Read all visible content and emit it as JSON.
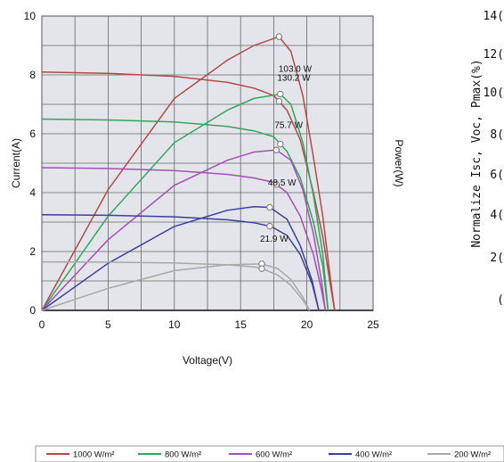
{
  "chart_data": [
    {
      "type": "line",
      "title": "",
      "xlabel": "Voltage(V)",
      "ylabel": "Current(A)",
      "y2label": "Power(W)",
      "xlim": [
        0,
        25
      ],
      "ylim": [
        0,
        10
      ],
      "xticks": [
        "0",
        "5",
        "10",
        "15",
        "20",
        "25"
      ],
      "yticks": [
        "0",
        "2",
        "4",
        "6",
        "8",
        "10"
      ],
      "grid": true,
      "colors": {
        "1000": "#b34a4a",
        "800": "#2ea85a",
        "600": "#a54fb8",
        "400": "#3b3fa0",
        "200": "#a8a8a8"
      },
      "series": [
        {
          "name": "1000 W/m²",
          "iv": [
            [
              0,
              8.1
            ],
            [
              5,
              8.05
            ],
            [
              10,
              7.95
            ],
            [
              14,
              7.75
            ],
            [
              16,
              7.55
            ],
            [
              17.5,
              7.3
            ],
            [
              18.5,
              6.8
            ],
            [
              19.5,
              5.8
            ],
            [
              20.5,
              4.0
            ],
            [
              21.2,
              2.5
            ],
            [
              21.8,
              0.8
            ],
            [
              22.1,
              0
            ]
          ],
          "pv": [
            [
              0,
              0
            ],
            [
              5,
              4.1
            ],
            [
              10,
              7.2
            ],
            [
              14,
              8.5
            ],
            [
              16,
              9.0
            ],
            [
              17.9,
              9.3
            ],
            [
              18.8,
              8.8
            ],
            [
              19.7,
              7.3
            ],
            [
              20.5,
              5.2
            ],
            [
              21.2,
              3.2
            ],
            [
              21.8,
              1.0
            ],
            [
              22.1,
              0
            ]
          ],
          "max_power_label": "130.2 W",
          "max_power_point": [
            17.9,
            9.3
          ]
        },
        {
          "name": "800 W/m²",
          "iv": [
            [
              0,
              6.5
            ],
            [
              5,
              6.47
            ],
            [
              10,
              6.4
            ],
            [
              14,
              6.25
            ],
            [
              16,
              6.1
            ],
            [
              17.5,
              5.9
            ],
            [
              18.5,
              5.4
            ],
            [
              19.5,
              4.5
            ],
            [
              20.5,
              3.0
            ],
            [
              21.2,
              1.5
            ],
            [
              21.6,
              0
            ]
          ],
          "pv": [
            [
              0,
              0
            ],
            [
              5,
              3.2
            ],
            [
              10,
              5.7
            ],
            [
              14,
              6.8
            ],
            [
              16,
              7.2
            ],
            [
              18.0,
              7.35
            ],
            [
              18.8,
              7.0
            ],
            [
              19.7,
              5.7
            ],
            [
              20.5,
              3.9
            ],
            [
              21.2,
              1.9
            ],
            [
              21.6,
              0
            ]
          ],
          "max_power_label": "103.0 W",
          "max_power_point": [
            18.0,
            7.35
          ]
        },
        {
          "name": "600 W/m²",
          "iv": [
            [
              0,
              4.85
            ],
            [
              5,
              4.82
            ],
            [
              10,
              4.75
            ],
            [
              14,
              4.62
            ],
            [
              16,
              4.5
            ],
            [
              17.5,
              4.35
            ],
            [
              18.5,
              4.0
            ],
            [
              19.5,
              3.2
            ],
            [
              20.5,
              1.9
            ],
            [
              21.1,
              0.7
            ],
            [
              21.4,
              0
            ]
          ],
          "pv": [
            [
              0,
              0
            ],
            [
              5,
              2.4
            ],
            [
              10,
              4.25
            ],
            [
              14,
              5.1
            ],
            [
              16,
              5.38
            ],
            [
              17.7,
              5.45
            ],
            [
              18.8,
              5.1
            ],
            [
              19.7,
              4.1
            ],
            [
              20.5,
              2.6
            ],
            [
              21.1,
              1.0
            ],
            [
              21.4,
              0
            ]
          ],
          "max_power_label": "75.7 W",
          "max_power_point": [
            17.7,
            5.45
          ]
        },
        {
          "name": "400 W/m²",
          "iv": [
            [
              0,
              3.25
            ],
            [
              5,
              3.23
            ],
            [
              10,
              3.18
            ],
            [
              14,
              3.08
            ],
            [
              16,
              2.98
            ],
            [
              17.3,
              2.85
            ],
            [
              18.5,
              2.55
            ],
            [
              19.5,
              1.9
            ],
            [
              20.4,
              0.9
            ],
            [
              20.9,
              0
            ]
          ],
          "pv": [
            [
              0,
              0
            ],
            [
              5,
              1.6
            ],
            [
              10,
              2.85
            ],
            [
              14,
              3.4
            ],
            [
              16,
              3.52
            ],
            [
              17.2,
              3.5
            ],
            [
              18.5,
              3.1
            ],
            [
              19.5,
              2.2
            ],
            [
              20.4,
              1.0
            ],
            [
              20.9,
              0
            ]
          ],
          "max_power_label": "48.5 W",
          "max_power_point": [
            17.2,
            3.5
          ]
        },
        {
          "name": "200 W/m²",
          "iv": [
            [
              0,
              1.65
            ],
            [
              5,
              1.64
            ],
            [
              10,
              1.61
            ],
            [
              14,
              1.55
            ],
            [
              16,
              1.48
            ],
            [
              16.6,
              1.42
            ],
            [
              17.8,
              1.2
            ],
            [
              18.8,
              0.85
            ],
            [
              19.7,
              0.35
            ],
            [
              20.2,
              0
            ]
          ],
          "pv": [
            [
              0,
              0
            ],
            [
              5,
              0.75
            ],
            [
              10,
              1.35
            ],
            [
              14,
              1.55
            ],
            [
              16.6,
              1.58
            ],
            [
              17.8,
              1.42
            ],
            [
              18.8,
              1.05
            ],
            [
              19.7,
              0.45
            ],
            [
              20.2,
              0
            ]
          ],
          "max_power_label": "21.9 W",
          "max_power_point": [
            16.6,
            1.58
          ]
        }
      ]
    },
    {
      "type": "line",
      "ylabel": "Normalize Isc, Voc, Pmax(%)",
      "ytick_fragments": [
        "14(",
        "12(",
        "10(",
        "8(",
        "6(",
        "4(",
        "2(",
        "("
      ]
    }
  ],
  "legend": [
    {
      "label": "1000 W/m²",
      "color": "#b34a4a"
    },
    {
      "label": "800 W/m²",
      "color": "#2ea85a"
    },
    {
      "label": "600 W/m²",
      "color": "#a54fb8"
    },
    {
      "label": "400 W/m²",
      "color": "#3b3fa0"
    },
    {
      "label": "200 W/m²",
      "color": "#a8a8a8"
    }
  ]
}
